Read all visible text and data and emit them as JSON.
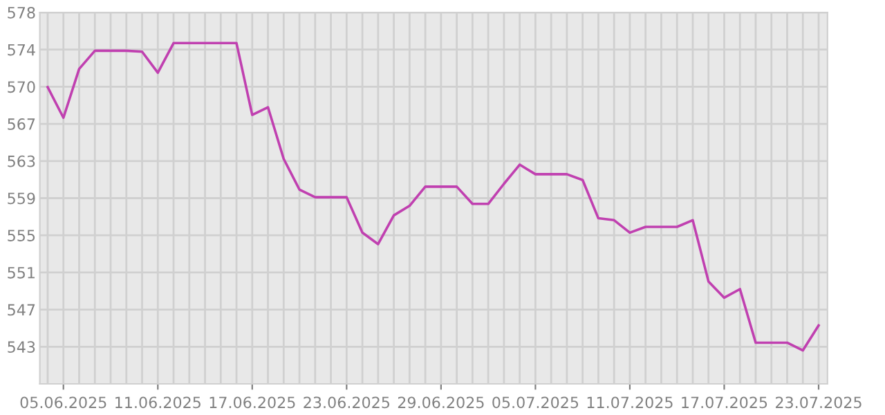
{
  "chart_data": {
    "type": "line",
    "x": [
      "2025-06-04",
      "2025-06-05",
      "2025-06-06",
      "2025-06-07",
      "2025-06-08",
      "2025-06-09",
      "2025-06-10",
      "2025-06-11",
      "2025-06-12",
      "2025-06-13",
      "2025-06-14",
      "2025-06-15",
      "2025-06-16",
      "2025-06-17",
      "2025-06-18",
      "2025-06-19",
      "2025-06-20",
      "2025-06-21",
      "2025-06-22",
      "2025-06-23",
      "2025-06-24",
      "2025-06-25",
      "2025-06-26",
      "2025-06-27",
      "2025-06-28",
      "2025-06-29",
      "2025-06-30",
      "2025-07-01",
      "2025-07-02",
      "2025-07-03",
      "2025-07-04",
      "2025-07-05",
      "2025-07-06",
      "2025-07-07",
      "2025-07-08",
      "2025-07-09",
      "2025-07-10",
      "2025-07-11",
      "2025-07-12",
      "2025-07-13",
      "2025-07-14",
      "2025-07-15",
      "2025-07-16",
      "2025-07-17",
      "2025-07-18",
      "2025-07-19",
      "2025-07-20",
      "2025-07-21",
      "2025-07-22",
      "2025-07-23"
    ],
    "series": [
      {
        "color": "#c040b0",
        "values": [
          570.4,
          567.2,
          572.3,
          574.2,
          574.2,
          574.2,
          574.1,
          571.9,
          575.0,
          575.0,
          575.0,
          575.0,
          575.0,
          567.5,
          568.3,
          562.9,
          559.7,
          558.9,
          558.9,
          558.9,
          555.2,
          554.0,
          557.0,
          558.0,
          560.0,
          560.0,
          560.0,
          558.2,
          558.2,
          560.3,
          562.3,
          561.3,
          561.3,
          561.3,
          560.7,
          556.7,
          556.5,
          555.2,
          555.8,
          555.8,
          555.8,
          556.5,
          550.1,
          548.4,
          549.3,
          543.7,
          543.7,
          543.7,
          542.9,
          545.5
        ]
      }
    ],
    "xlim": [
      "2025-06-03T12:00",
      "2025-07-23T13:30"
    ],
    "xticks": [
      {
        "value": "2025-06-04",
        "label": null
      },
      {
        "value": "2025-06-05",
        "label": "05.06.2025"
      },
      {
        "value": "2025-06-06",
        "label": null
      },
      {
        "value": "2025-06-07",
        "label": null
      },
      {
        "value": "2025-06-08",
        "label": null
      },
      {
        "value": "2025-06-09",
        "label": null
      },
      {
        "value": "2025-06-10",
        "label": null
      },
      {
        "value": "2025-06-11",
        "label": "11.06.2025"
      },
      {
        "value": "2025-06-12",
        "label": null
      },
      {
        "value": "2025-06-13",
        "label": null
      },
      {
        "value": "2025-06-14",
        "label": null
      },
      {
        "value": "2025-06-15",
        "label": null
      },
      {
        "value": "2025-06-16",
        "label": null
      },
      {
        "value": "2025-06-17",
        "label": "17.06.2025"
      },
      {
        "value": "2025-06-18",
        "label": null
      },
      {
        "value": "2025-06-19",
        "label": null
      },
      {
        "value": "2025-06-20",
        "label": null
      },
      {
        "value": "2025-06-21",
        "label": null
      },
      {
        "value": "2025-06-22",
        "label": null
      },
      {
        "value": "2025-06-23",
        "label": "23.06.2025"
      },
      {
        "value": "2025-06-24",
        "label": null
      },
      {
        "value": "2025-06-25",
        "label": null
      },
      {
        "value": "2025-06-26",
        "label": null
      },
      {
        "value": "2025-06-27",
        "label": null
      },
      {
        "value": "2025-06-28",
        "label": null
      },
      {
        "value": "2025-06-29",
        "label": "29.06.2025"
      },
      {
        "value": "2025-06-30",
        "label": null
      },
      {
        "value": "2025-07-01",
        "label": null
      },
      {
        "value": "2025-07-02",
        "label": null
      },
      {
        "value": "2025-07-03",
        "label": null
      },
      {
        "value": "2025-07-04",
        "label": null
      },
      {
        "value": "2025-07-05",
        "label": "05.07.2025"
      },
      {
        "value": "2025-07-06",
        "label": null
      },
      {
        "value": "2025-07-07",
        "label": null
      },
      {
        "value": "2025-07-08",
        "label": null
      },
      {
        "value": "2025-07-09",
        "label": null
      },
      {
        "value": "2025-07-10",
        "label": null
      },
      {
        "value": "2025-07-11",
        "label": "11.07.2025"
      },
      {
        "value": "2025-07-12",
        "label": null
      },
      {
        "value": "2025-07-13",
        "label": null
      },
      {
        "value": "2025-07-14",
        "label": null
      },
      {
        "value": "2025-07-15",
        "label": null
      },
      {
        "value": "2025-07-16",
        "label": null
      },
      {
        "value": "2025-07-17",
        "label": "17.07.2025"
      },
      {
        "value": "2025-07-18",
        "label": null
      },
      {
        "value": "2025-07-19",
        "label": null
      },
      {
        "value": "2025-07-20",
        "label": null
      },
      {
        "value": "2025-07-21",
        "label": null
      },
      {
        "value": "2025-07-22",
        "label": null
      },
      {
        "value": "2025-07-23",
        "label": "23.07.2025"
      }
    ],
    "ylim": [
      539.4,
      578.2
    ],
    "yticks": [
      {
        "value": 578.2,
        "label": "578"
      },
      {
        "value": 574.32,
        "label": "574"
      },
      {
        "value": 570.44,
        "label": "570"
      },
      {
        "value": 566.56,
        "label": "567"
      },
      {
        "value": 562.68,
        "label": "563"
      },
      {
        "value": 558.8,
        "label": "559"
      },
      {
        "value": 554.92,
        "label": "555"
      },
      {
        "value": 551.04,
        "label": "551"
      },
      {
        "value": 547.16,
        "label": "547"
      },
      {
        "value": 543.28,
        "label": "543"
      }
    ],
    "grid": true,
    "marker": "none",
    "line_style": "solid"
  }
}
